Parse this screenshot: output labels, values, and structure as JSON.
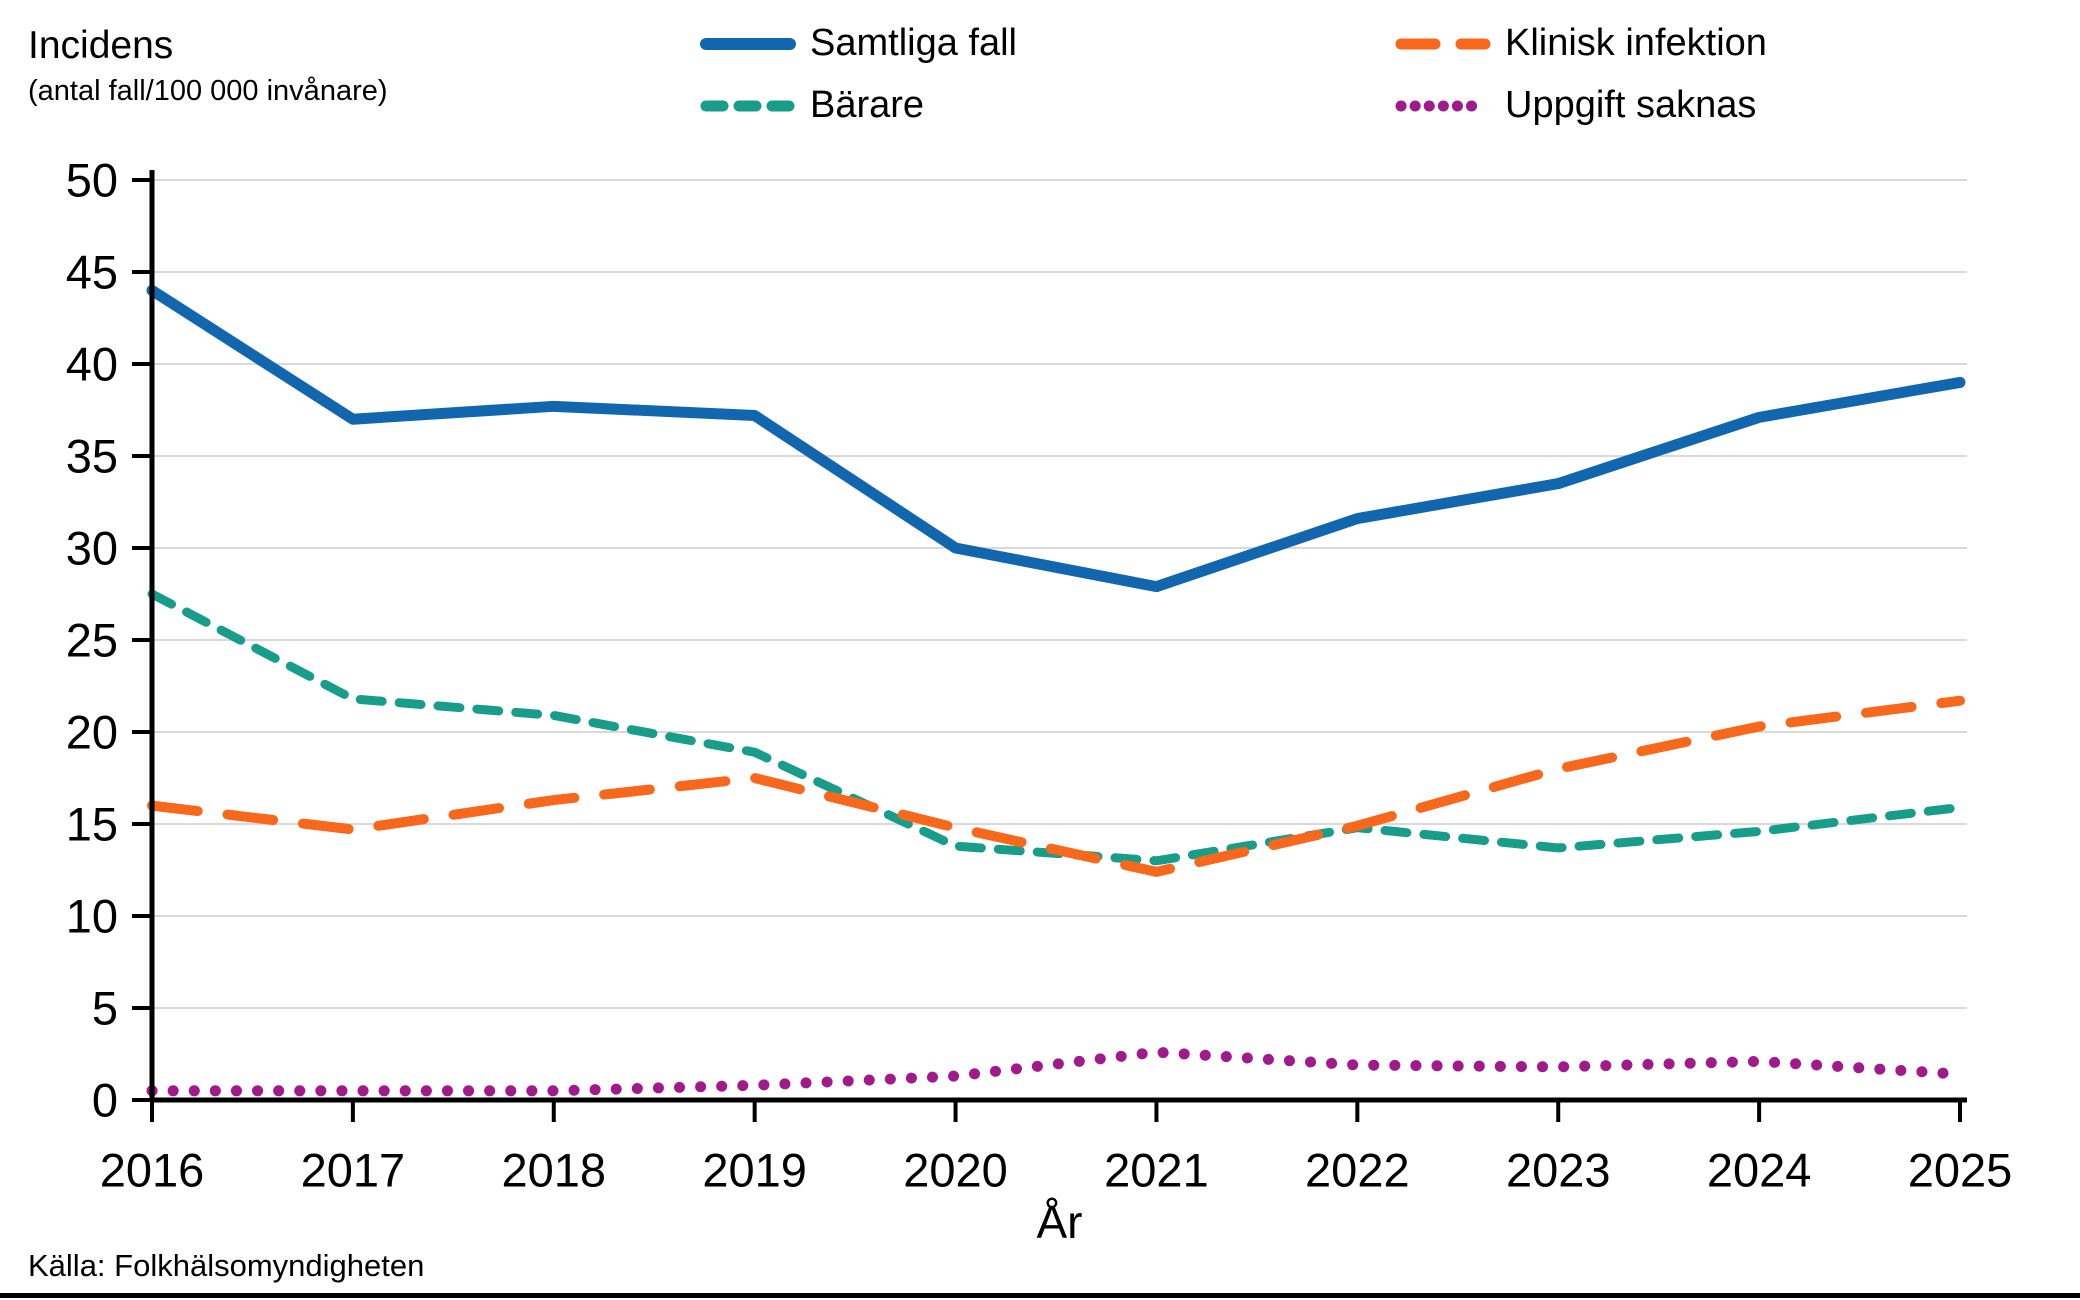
{
  "header": {
    "title": "Incidens",
    "subtitle": "(antal fall/100 000 invånare)"
  },
  "legend": [
    {
      "label": "Samtliga fall",
      "color": "#1266ae",
      "style": "solid"
    },
    {
      "label": "Bärare",
      "color": "#199d8b",
      "style": "dashed"
    },
    {
      "label": "Klinisk infektion",
      "color": "#f8681c",
      "style": "longdash"
    },
    {
      "label": "Uppgift saknas",
      "color": "#a11a8c",
      "style": "dotted"
    }
  ],
  "chart_data": {
    "type": "line",
    "x": [
      2016,
      2017,
      2018,
      2019,
      2020,
      2021,
      2022,
      2023,
      2024,
      2025
    ],
    "series": [
      {
        "name": "Samtliga fall",
        "color": "#1266ae",
        "style": "solid",
        "values": [
          44.0,
          37.0,
          37.7,
          37.2,
          30.0,
          27.9,
          31.6,
          33.5,
          37.1,
          39.0
        ]
      },
      {
        "name": "Bärare",
        "color": "#199d8b",
        "style": "dashed",
        "values": [
          27.5,
          21.8,
          20.9,
          18.9,
          13.8,
          13.0,
          14.8,
          13.7,
          14.6,
          15.9
        ]
      },
      {
        "name": "Klinisk infektion",
        "color": "#f8681c",
        "style": "longdash",
        "values": [
          16.0,
          14.7,
          16.3,
          17.5,
          14.8,
          12.4,
          14.9,
          18.0,
          20.3,
          21.7
        ]
      },
      {
        "name": "Uppgift saknas",
        "color": "#a11a8c",
        "style": "dotted",
        "values": [
          0.5,
          0.5,
          0.5,
          0.8,
          1.3,
          2.6,
          1.9,
          1.8,
          2.1,
          1.4
        ]
      }
    ],
    "title": "Incidens (antal fall/100 000 invånare)",
    "xlabel": "År",
    "ylabel": "Incidens (antal fall/100 000 invånare)",
    "ylim": [
      0,
      50
    ],
    "yticks": [
      0,
      5,
      10,
      15,
      20,
      25,
      30,
      35,
      40,
      45,
      50
    ],
    "xticks": [
      2016,
      2017,
      2018,
      2019,
      2020,
      2021,
      2022,
      2023,
      2024,
      2025
    ],
    "grid": true,
    "grid_color": "#d9d9d9",
    "axis_color": "#000000",
    "legend_position": "top"
  },
  "footer": {
    "source": "Källa: Folkhälsomyndigheten"
  }
}
